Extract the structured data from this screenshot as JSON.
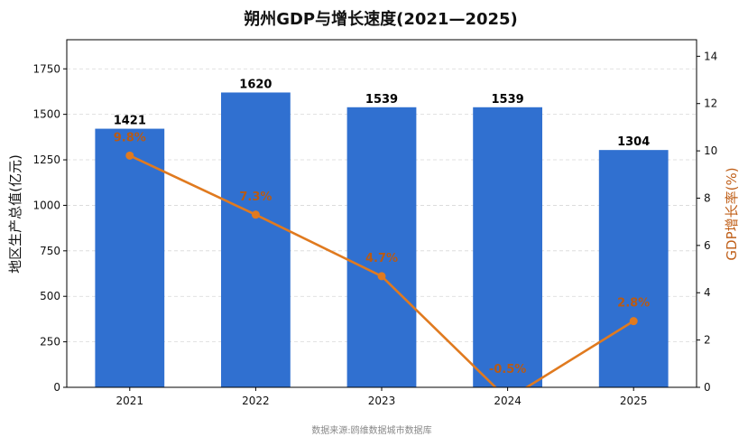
{
  "chart_data": {
    "type": "bar",
    "title": "朔州GDP与增长速度(2021—2025)",
    "categories": [
      "2021",
      "2022",
      "2023",
      "2024",
      "2025"
    ],
    "series": [
      {
        "name": "地区生产总值(亿元)",
        "type": "bar",
        "axis": "left",
        "color": "#3070d0",
        "values": [
          1421,
          1620,
          1539,
          1539,
          1304
        ],
        "labels": [
          "1421",
          "1620",
          "1539",
          "1539",
          "1304"
        ]
      },
      {
        "name": "GDP增长率(%)",
        "type": "line",
        "axis": "right",
        "color": "#e07a1f",
        "label_color": "#b85a14",
        "values": [
          9.8,
          7.3,
          4.7,
          -0.5,
          2.8
        ],
        "labels": [
          "9.8%",
          "7.3%",
          "4.7%",
          "-0.5%",
          "2.8%"
        ]
      }
    ],
    "y_left": {
      "label": "地区生产总值(亿元)",
      "range": [
        0,
        1910
      ],
      "ticks": [
        0,
        250,
        500,
        750,
        1000,
        1250,
        1500,
        1750
      ],
      "tick_labels": [
        "0",
        "250",
        "500",
        "750",
        "1000",
        "1250",
        "1500",
        "1750"
      ]
    },
    "y_right": {
      "label": "GDP增长率(%)",
      "range": [
        0,
        14.7
      ],
      "ticks": [
        0,
        2,
        4,
        6,
        8,
        10,
        12,
        14
      ],
      "tick_labels": [
        "0",
        "2",
        "4",
        "6",
        "8",
        "10",
        "12",
        "14"
      ],
      "color": "#c0601a"
    },
    "grid": "horizontal-dashed",
    "legend": "none",
    "source": "数据来源:鸥维数据城市数据库"
  }
}
